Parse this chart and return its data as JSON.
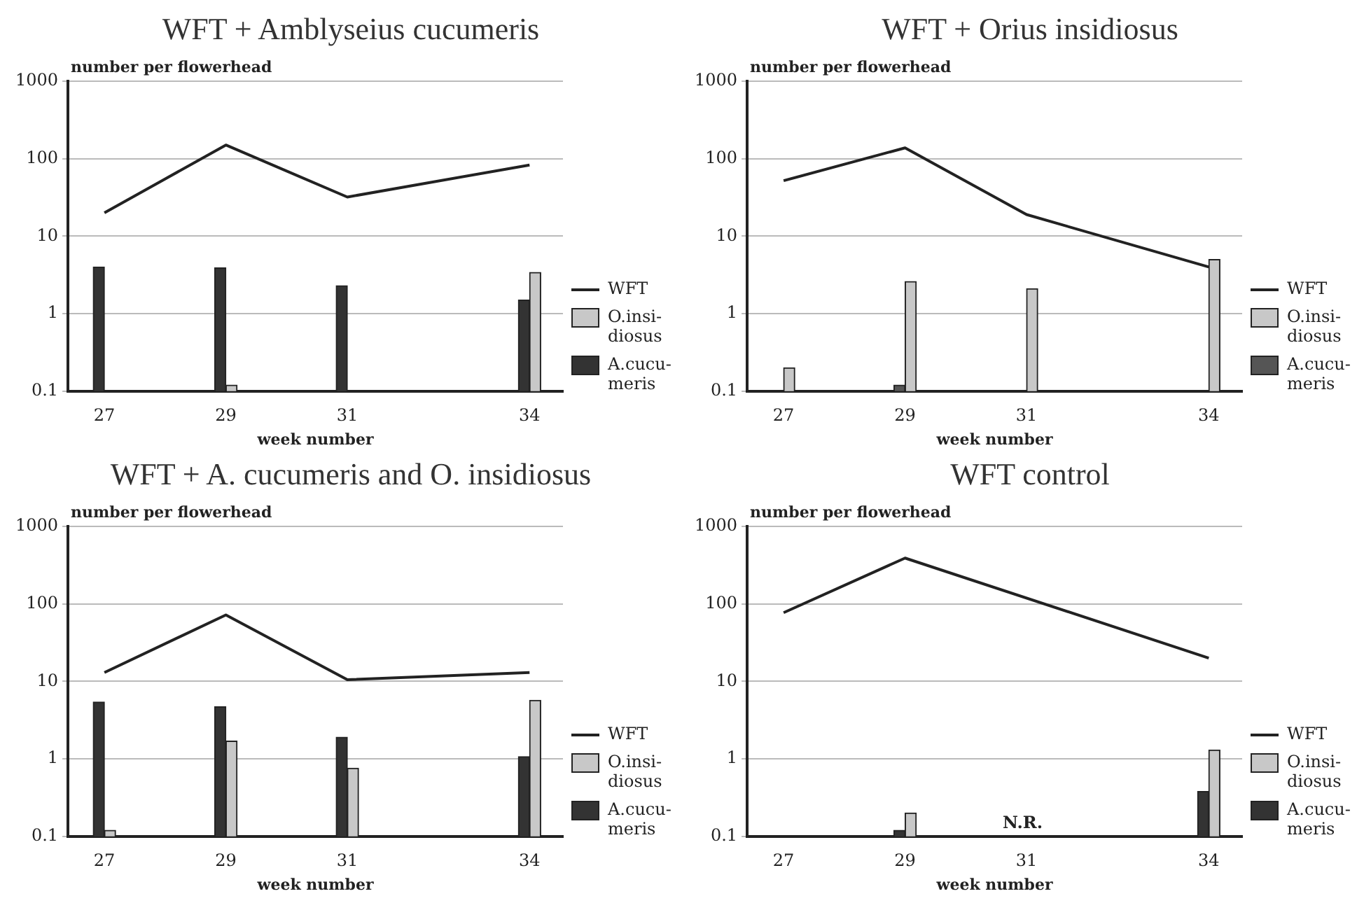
{
  "chart_data": [
    {
      "type": "bar",
      "title": "WFT + Amblyseius cucumeris",
      "ylabel": "number per flowerhead",
      "xlabel": "week number",
      "x": [
        27,
        29,
        31,
        34
      ],
      "xlim": [
        26.4,
        34.55
      ],
      "xticks": [
        27,
        29,
        31,
        34
      ],
      "ylim": [
        0.1,
        1000
      ],
      "yticks": [
        0.1,
        1,
        10,
        100,
        1000
      ],
      "log": "y",
      "grid": "y",
      "legend": "right",
      "marker": "none",
      "series": [
        {
          "name": "WFT",
          "type": "line",
          "color": "#222222",
          "values": [
            20,
            150,
            32,
            83
          ]
        },
        {
          "name": "O.insi-diosus",
          "color": "#c8c8c8",
          "values": [
            null,
            0.12,
            null,
            3.4
          ]
        },
        {
          "name": "A.cucu-meris",
          "color": "#333333",
          "values": [
            4,
            3.9,
            2.3,
            1.5
          ]
        }
      ]
    },
    {
      "type": "bar",
      "title": "WFT + Orius insidiosus",
      "ylabel": "number per flowerhead",
      "xlabel": "week number",
      "x": [
        27,
        29,
        31,
        34
      ],
      "xlim": [
        26.4,
        34.55
      ],
      "xticks": [
        27,
        29,
        31,
        34
      ],
      "ylim": [
        0.1,
        1000
      ],
      "yticks": [
        0.1,
        1,
        10,
        100,
        1000
      ],
      "log": "y",
      "grid": "y",
      "legend": "right",
      "marker": "none",
      "series": [
        {
          "name": "WFT",
          "type": "line",
          "color": "#222222",
          "values": [
            52,
            138,
            19,
            4
          ]
        },
        {
          "name": "O.insi-diosus",
          "color": "#c8c8c8",
          "values": [
            0.2,
            2.6,
            2.1,
            5
          ]
        },
        {
          "name": "A.cucu-meris",
          "color": "#555555",
          "values": [
            null,
            0.12,
            null,
            null
          ]
        }
      ]
    },
    {
      "type": "bar",
      "title": "WFT + A. cucumeris and O. insidiosus",
      "ylabel": "number per flowerhead",
      "xlabel": "week number",
      "x": [
        27,
        29,
        31,
        34
      ],
      "xlim": [
        26.4,
        34.55
      ],
      "xticks": [
        27,
        29,
        31,
        34
      ],
      "ylim": [
        0.1,
        1000
      ],
      "yticks": [
        0.1,
        1,
        10,
        100,
        1000
      ],
      "log": "y",
      "grid": "y",
      "legend": "right",
      "marker": "none",
      "series": [
        {
          "name": "WFT",
          "type": "line",
          "color": "#222222",
          "values": [
            13,
            72,
            10.5,
            13
          ]
        },
        {
          "name": "O.insi-diosus",
          "color": "#c8c8c8",
          "values": [
            0.12,
            1.7,
            0.76,
            5.7
          ]
        },
        {
          "name": "A.cucu-meris",
          "color": "#333333",
          "values": [
            5.4,
            4.7,
            1.9,
            1.07
          ]
        }
      ]
    },
    {
      "type": "bar",
      "title": "WFT control",
      "ylabel": "number per flowerhead",
      "xlabel": "week number",
      "x": [
        27,
        29,
        31,
        34
      ],
      "xlim": [
        26.4,
        34.55
      ],
      "xticks": [
        27,
        29,
        31,
        34
      ],
      "ylim": [
        0.1,
        1000
      ],
      "yticks": [
        0.1,
        1,
        10,
        100,
        1000
      ],
      "log": "y",
      "grid": "y",
      "legend": "right",
      "marker": "none",
      "annotations": [
        "N.R."
      ],
      "series": [
        {
          "name": "WFT",
          "type": "line",
          "color": "#222222",
          "values": [
            77,
            390,
            null,
            20
          ]
        },
        {
          "name": "O.insi-diosus",
          "color": "#c8c8c8",
          "values": [
            null,
            0.2,
            null,
            1.3
          ]
        },
        {
          "name": "A.cucu-meris",
          "color": "#333333",
          "values": [
            null,
            0.12,
            null,
            0.38
          ]
        }
      ]
    }
  ]
}
